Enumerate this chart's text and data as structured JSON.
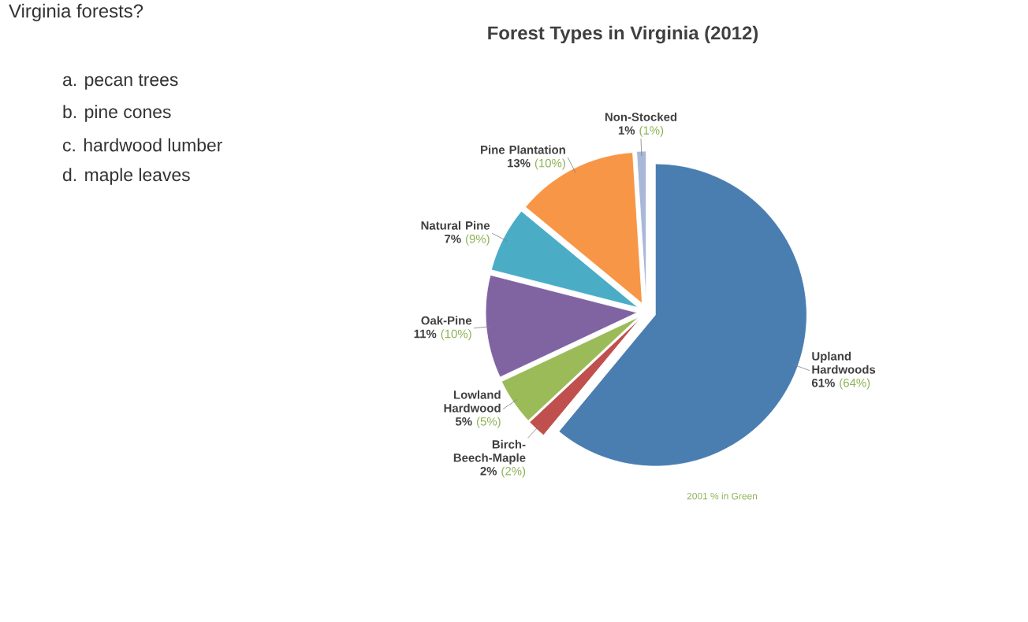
{
  "chart_data": {
    "type": "pie",
    "title": "Forest Types in Virginia (2012)",
    "categories": [
      "Upland Hardwoods",
      "Birch-Beech-Maple",
      "Lowland Hardwood",
      "Oak-Pine",
      "Natural Pine",
      "Pine Plantation",
      "Non-Stocked"
    ],
    "values": [
      61,
      2,
      5,
      11,
      7,
      13,
      1
    ],
    "value_labels": [
      "61%",
      "2%",
      "5%",
      "11%",
      "7%",
      "13%",
      "1%"
    ],
    "colors": [
      "#4a7eb0",
      "#c0504d",
      "#9bbb59",
      "#8064a2",
      "#4bacc6",
      "#f79646",
      "#a9b8d8"
    ],
    "annotations": [
      "Virginia forests?",
      "a. pecan trees",
      "b. pine cones",
      "c. hardwood lumber",
      "d. maple leaves",
      "(64%)",
      "(2%)",
      "(5%)",
      "(10%)",
      "(9%)",
      "(10%)",
      "(1%)",
      "2001 % in Green"
    ]
  }
}
